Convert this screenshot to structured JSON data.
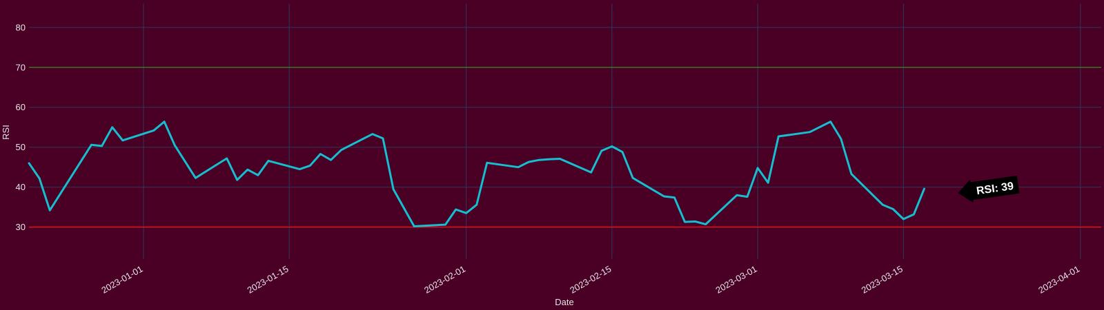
{
  "chart_data": {
    "type": "line",
    "xlabel": "Date",
    "ylabel": "RSI",
    "ylim": [
      22,
      86
    ],
    "xlim": [
      "2022-12-21",
      "2023-04-03"
    ],
    "y_ticks": [
      30,
      40,
      50,
      60,
      70,
      80
    ],
    "x_ticks": [
      "2023-01-01",
      "2023-01-15",
      "2023-02-01",
      "2023-02-15",
      "2023-03-01",
      "2023-03-15",
      "2023-04-01"
    ],
    "grid": true,
    "reference_lines": [
      {
        "value": 70,
        "color": "#3a9e1a"
      },
      {
        "value": 30,
        "color": "#e0101a"
      }
    ],
    "series": [
      {
        "color": "#17becf",
        "points": [
          [
            "2022-12-21",
            46
          ],
          [
            "2022-12-22",
            42.2
          ],
          [
            "2022-12-23",
            34.2
          ],
          [
            "2022-12-27",
            50.6
          ],
          [
            "2022-12-28",
            50.3
          ],
          [
            "2022-12-29",
            55
          ],
          [
            "2022-12-30",
            51.7
          ],
          [
            "2023-01-02",
            54.2
          ],
          [
            "2023-01-03",
            56.4
          ],
          [
            "2023-01-04",
            50.5
          ],
          [
            "2023-01-06",
            42.3
          ],
          [
            "2023-01-09",
            47.2
          ],
          [
            "2023-01-10",
            41.8
          ],
          [
            "2023-01-11",
            44.4
          ],
          [
            "2023-01-12",
            43
          ],
          [
            "2023-01-13",
            46.6
          ],
          [
            "2023-01-16",
            44.5
          ],
          [
            "2023-01-17",
            45.4
          ],
          [
            "2023-01-18",
            48.3
          ],
          [
            "2023-01-19",
            46.8
          ],
          [
            "2023-01-20",
            49.3
          ],
          [
            "2023-01-23",
            53.3
          ],
          [
            "2023-01-24",
            52.2
          ],
          [
            "2023-01-25",
            39.5
          ],
          [
            "2023-01-27",
            30.2
          ],
          [
            "2023-01-30",
            30.6
          ],
          [
            "2023-01-31",
            34.4
          ],
          [
            "2023-02-01",
            33.5
          ],
          [
            "2023-02-02",
            35.6
          ],
          [
            "2023-02-03",
            46.1
          ],
          [
            "2023-02-06",
            45
          ],
          [
            "2023-02-07",
            46.3
          ],
          [
            "2023-02-08",
            46.8
          ],
          [
            "2023-02-09",
            47
          ],
          [
            "2023-02-10",
            47.1
          ],
          [
            "2023-02-13",
            43.7
          ],
          [
            "2023-02-14",
            49.1
          ],
          [
            "2023-02-15",
            50.2
          ],
          [
            "2023-02-16",
            48.8
          ],
          [
            "2023-02-17",
            42.3
          ],
          [
            "2023-02-20",
            37.7
          ],
          [
            "2023-02-21",
            37.4
          ],
          [
            "2023-02-22",
            31.3
          ],
          [
            "2023-02-23",
            31.4
          ],
          [
            "2023-02-24",
            30.7
          ],
          [
            "2023-02-27",
            38
          ],
          [
            "2023-02-28",
            37.6
          ],
          [
            "2023-03-01",
            44.8
          ],
          [
            "2023-03-02",
            41.1
          ],
          [
            "2023-03-03",
            52.7
          ],
          [
            "2023-03-06",
            53.8
          ],
          [
            "2023-03-08",
            56.4
          ],
          [
            "2023-03-09",
            52.1
          ],
          [
            "2023-03-10",
            43.3
          ],
          [
            "2023-03-13",
            35.6
          ],
          [
            "2023-03-14",
            34.5
          ],
          [
            "2023-03-15",
            32
          ],
          [
            "2023-03-16",
            33.2
          ],
          [
            "2023-03-17",
            39.6
          ]
        ]
      }
    ],
    "annotation": {
      "text": "RSI: 39",
      "x": "2023-03-21",
      "y": 40
    }
  }
}
